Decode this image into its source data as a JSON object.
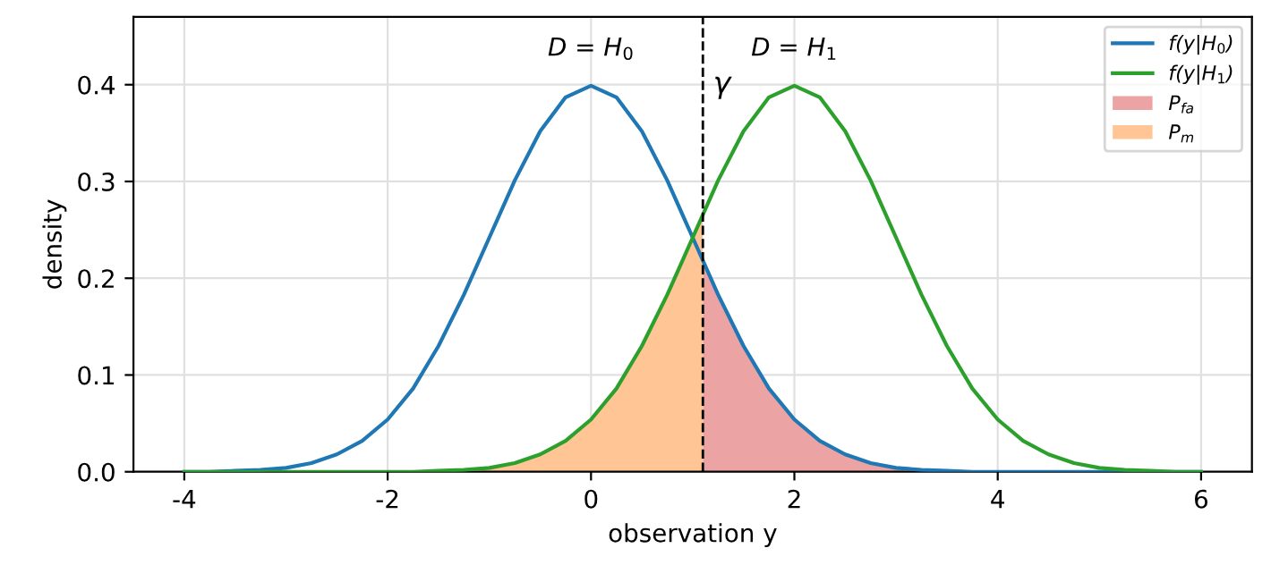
{
  "chart_data": {
    "type": "line",
    "xlabel": "observation y",
    "ylabel": "density",
    "xlim": [
      -4.5,
      6.5
    ],
    "ylim": [
      0,
      0.47
    ],
    "xticks": [
      -4,
      -2,
      0,
      2,
      4,
      6
    ],
    "yticks": [
      {
        "value": 0,
        "label": "0.0"
      },
      0.1,
      0.2,
      0.3,
      0.4
    ],
    "grid": true,
    "legend": "top right",
    "marker": "none",
    "line_style": "solid",
    "series": [
      {
        "type": "area",
        "name": "P$_{fa}$",
        "color": "#eba3a4",
        "x": [
          1.1,
          1.25,
          1.5,
          1.75,
          2,
          2.25,
          2.5,
          2.75,
          3,
          3.25,
          3.5,
          3.75,
          4
        ],
        "values": [
          0.218,
          0.183,
          0.13,
          0.086,
          0.054,
          0.032,
          0.018,
          0.009,
          0.004,
          0.002,
          0.001,
          0.0,
          0.0
        ]
      },
      {
        "type": "area",
        "name": "P$_{m}$",
        "color": "#ffc595",
        "x": [
          -2,
          -1.75,
          -1.5,
          -1.25,
          -1,
          -0.75,
          -0.5,
          -0.25,
          0,
          0.25,
          0.5,
          0.75,
          1,
          1.1
        ],
        "values": [
          0.0,
          0.0,
          0.001,
          0.002,
          0.004,
          0.009,
          0.018,
          0.032,
          0.054,
          0.086,
          0.13,
          0.183,
          0.242,
          0.266
        ]
      },
      {
        "name": "f(y|H$_{0}$)",
        "color": "#1f77b4",
        "x": [
          -4,
          -3.75,
          -3.5,
          -3.25,
          -3,
          -2.75,
          -2.5,
          -2.25,
          -2,
          -1.75,
          -1.5,
          -1.25,
          -1,
          -0.75,
          -0.5,
          -0.25,
          0,
          0.25,
          0.5,
          0.75,
          1,
          1.25,
          1.5,
          1.75,
          2,
          2.25,
          2.5,
          2.75,
          3,
          3.25,
          3.5,
          3.75,
          4,
          4.5,
          5,
          6
        ],
        "values": [
          0.0,
          0.0,
          0.001,
          0.002,
          0.004,
          0.009,
          0.018,
          0.032,
          0.054,
          0.086,
          0.13,
          0.183,
          0.242,
          0.301,
          0.352,
          0.387,
          0.399,
          0.387,
          0.352,
          0.301,
          0.242,
          0.183,
          0.13,
          0.086,
          0.054,
          0.032,
          0.018,
          0.009,
          0.004,
          0.002,
          0.001,
          0.0,
          0.0,
          0.0,
          0.0,
          0.0
        ]
      },
      {
        "name": "f(y|H$_{1}$)",
        "color": "#2ca02c",
        "x": [
          -4,
          -2.5,
          -2,
          -1.75,
          -1.5,
          -1.25,
          -1,
          -0.75,
          -0.5,
          -0.25,
          0,
          0.25,
          0.5,
          0.75,
          1,
          1.25,
          1.5,
          1.75,
          2,
          2.25,
          2.5,
          2.75,
          3,
          3.25,
          3.5,
          3.75,
          4,
          4.25,
          4.5,
          4.75,
          5,
          5.25,
          5.5,
          5.75,
          6
        ],
        "values": [
          0.0,
          0.0,
          0.0,
          0.0,
          0.001,
          0.002,
          0.004,
          0.009,
          0.018,
          0.032,
          0.054,
          0.086,
          0.13,
          0.183,
          0.242,
          0.301,
          0.352,
          0.387,
          0.399,
          0.387,
          0.352,
          0.301,
          0.242,
          0.183,
          0.13,
          0.086,
          0.054,
          0.032,
          0.018,
          0.009,
          0.004,
          0.002,
          0.001,
          0.0,
          0.0
        ]
      }
    ],
    "ref_lines": [
      {
        "axis": "x",
        "value": 1.1,
        "label": "γ",
        "color": "#000000",
        "line_style": "dashed"
      }
    ],
    "annotations": [
      "D = H$_{0}$",
      "D = H$_{1}$"
    ]
  }
}
